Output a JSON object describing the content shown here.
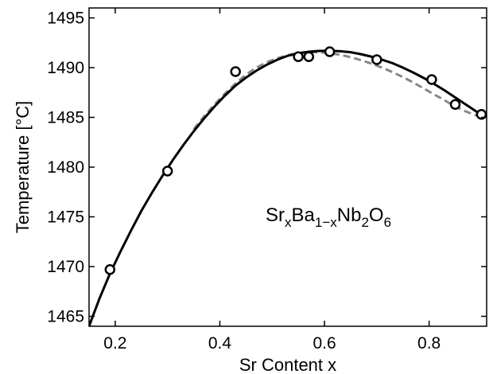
{
  "chart_data": {
    "type": "scatter",
    "xlabel": "Sr Content  x",
    "ylabel": "Temperature  [°C]",
    "xlim": [
      0.15,
      0.91
    ],
    "ylim": [
      1464,
      1496
    ],
    "xticks": [
      0.2,
      0.4,
      0.6,
      0.8
    ],
    "xtick_labels": [
      "0.2",
      "0.4",
      "0.6",
      "0.8"
    ],
    "yticks": [
      1465,
      1470,
      1475,
      1480,
      1485,
      1490,
      1495
    ],
    "ytick_labels": [
      "1465",
      "1470",
      "1475",
      "1480",
      "1485",
      "1490",
      "1495"
    ],
    "grid": false,
    "annotation": {
      "parts": [
        {
          "text": "Sr",
          "sub": false
        },
        {
          "text": "x",
          "sub": true
        },
        {
          "text": "Ba",
          "sub": false
        },
        {
          "text": "1−x",
          "sub": true
        },
        {
          "text": "Nb",
          "sub": false
        },
        {
          "text": "2",
          "sub": true
        },
        {
          "text": "O",
          "sub": false
        },
        {
          "text": "6",
          "sub": true
        }
      ]
    },
    "series": [
      {
        "style": "markers",
        "marker": "open-circle",
        "color": "#000000",
        "x": [
          0.19,
          0.3,
          0.43,
          0.55,
          0.57,
          0.61,
          0.7,
          0.805,
          0.85,
          0.9
        ],
        "y": [
          1469.7,
          1479.6,
          1489.6,
          1491.1,
          1491.1,
          1491.6,
          1490.8,
          1488.8,
          1486.3,
          1485.3
        ]
      },
      {
        "style": "solid-line",
        "color": "#000000",
        "x": [
          0.15,
          0.17,
          0.19,
          0.21,
          0.23,
          0.25,
          0.27,
          0.29,
          0.31,
          0.33,
          0.35,
          0.37,
          0.39,
          0.41,
          0.43,
          0.45,
          0.47,
          0.49,
          0.51,
          0.53,
          0.55,
          0.57,
          0.59,
          0.61,
          0.63,
          0.65,
          0.67,
          0.69,
          0.71,
          0.73,
          0.75,
          0.77,
          0.79,
          0.81,
          0.83,
          0.85,
          0.87,
          0.89,
          0.9
        ],
        "y": [
          1464.0,
          1466.8,
          1469.3,
          1471.5,
          1473.6,
          1475.6,
          1477.4,
          1479.1,
          1480.7,
          1482.2,
          1483.6,
          1484.9,
          1486.1,
          1487.2,
          1488.2,
          1489.0,
          1489.7,
          1490.3,
          1490.8,
          1491.2,
          1491.45,
          1491.6,
          1491.68,
          1491.7,
          1491.65,
          1491.55,
          1491.35,
          1491.1,
          1490.8,
          1490.45,
          1490.0,
          1489.5,
          1488.95,
          1488.35,
          1487.7,
          1487.0,
          1486.3,
          1485.6,
          1485.2
        ]
      },
      {
        "style": "dashed-line",
        "color": "#888888",
        "x": [
          0.35,
          0.37,
          0.39,
          0.41,
          0.43,
          0.45,
          0.47,
          0.49,
          0.51,
          0.53,
          0.55,
          0.57,
          0.59,
          0.61,
          0.63,
          0.65,
          0.67,
          0.69,
          0.71,
          0.73,
          0.75,
          0.77,
          0.79,
          0.81,
          0.83,
          0.85,
          0.87,
          0.89,
          0.9
        ],
        "y": [
          1483.8,
          1485.1,
          1486.3,
          1487.4,
          1488.4,
          1489.3,
          1490.0,
          1490.55,
          1490.95,
          1491.25,
          1491.45,
          1491.55,
          1491.55,
          1491.45,
          1491.3,
          1491.05,
          1490.75,
          1490.4,
          1490.0,
          1489.55,
          1489.05,
          1488.5,
          1487.9,
          1487.3,
          1486.7,
          1486.1,
          1485.6,
          1485.2,
          1485.1
        ]
      }
    ]
  }
}
